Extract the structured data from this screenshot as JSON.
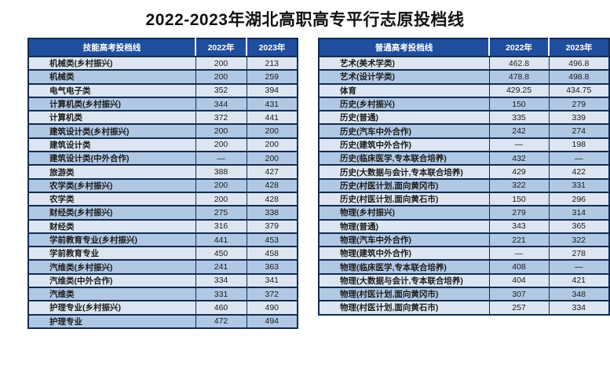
{
  "title": "2022-2023年湖北高职高专平行志原投档线",
  "colors": {
    "header_bg": "#1f4e9e",
    "header_text": "#ffffff",
    "row_odd": "#dce6f2",
    "row_even": "#b1c8e4",
    "border": "#132b52",
    "body_text": "#1b1b1b"
  },
  "chart_data": [
    {
      "type": "table",
      "title": "技能高考投档线",
      "columns": [
        "技能高考投档线",
        "2022年",
        "2023年"
      ],
      "rows": [
        [
          "机械类(乡村振兴)",
          "200",
          "213"
        ],
        [
          "机械类",
          "200",
          "259"
        ],
        [
          "电气电子类",
          "352",
          "394"
        ],
        [
          "计算机类(乡村振兴)",
          "344",
          "431"
        ],
        [
          "计算机类",
          "372",
          "441"
        ],
        [
          "建筑设计类(乡村振兴)",
          "200",
          "200"
        ],
        [
          "建筑设计类",
          "200",
          "200"
        ],
        [
          "建筑设计类(中外合作)",
          "—",
          "200"
        ],
        [
          "旅游类",
          "388",
          "427"
        ],
        [
          "农学类(乡村振兴)",
          "200",
          "428"
        ],
        [
          "农学类",
          "200",
          "428"
        ],
        [
          "财经类(乡村振兴)",
          "275",
          "338"
        ],
        [
          "财经类",
          "316",
          "379"
        ],
        [
          "学前教育专业(乡村振兴)",
          "441",
          "453"
        ],
        [
          "学前教育专业",
          "450",
          "458"
        ],
        [
          "汽维类(乡村振兴)",
          "241",
          "363"
        ],
        [
          "汽维类(中外合作)",
          "334",
          "341"
        ],
        [
          "汽维类",
          "331",
          "372"
        ],
        [
          "护理专业(乡村振兴)",
          "460",
          "490"
        ],
        [
          "护理专业",
          "472",
          "494"
        ]
      ]
    },
    {
      "type": "table",
      "title": "普通高考投档线",
      "columns": [
        "普通高考投档线",
        "2022年",
        "2023年"
      ],
      "rows": [
        [
          "艺术(美术学类)",
          "462.8",
          "496.8"
        ],
        [
          "艺术(设计学类)",
          "478.8",
          "498.8"
        ],
        [
          "体育",
          "429.25",
          "434.75"
        ],
        [
          "历史(乡村振兴)",
          "150",
          "279"
        ],
        [
          "历史(普通)",
          "335",
          "339"
        ],
        [
          "历史(汽车中外合作)",
          "242",
          "274"
        ],
        [
          "历史(建筑中外合作)",
          "—",
          "198"
        ],
        [
          "历史(临床医学,专本联合培养)",
          "432",
          "—"
        ],
        [
          "历史(大数据与会计,专本联合培养)",
          "429",
          "422"
        ],
        [
          "历史(村医计划,面向黄冈市)",
          "322",
          "331"
        ],
        [
          "历史(村医计划,面向黄石市)",
          "150",
          "296"
        ],
        [
          "物理(乡村振兴)",
          "279",
          "314"
        ],
        [
          "物理(普通)",
          "343",
          "365"
        ],
        [
          "物理(汽车中外合作)",
          "221",
          "322"
        ],
        [
          "物理(建筑中外合作)",
          "—",
          "278"
        ],
        [
          "物理(临床医学,专本联合培养)",
          "408",
          "—"
        ],
        [
          "物理(大数据与会计,专本联合培养)",
          "404",
          "421"
        ],
        [
          "物理(村医计划,面向黄冈市)",
          "307",
          "348"
        ],
        [
          "物理(村医计划,面向黄石市)",
          "257",
          "334"
        ]
      ]
    }
  ]
}
